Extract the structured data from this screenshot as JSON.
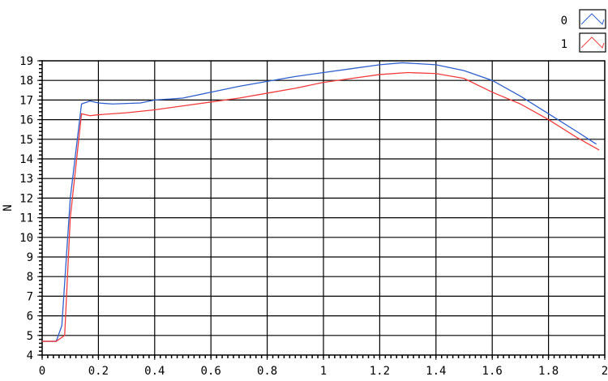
{
  "chart_data": {
    "type": "line",
    "title": "",
    "xlabel": "",
    "ylabel": "N",
    "xlim": [
      0,
      2
    ],
    "ylim": [
      4,
      19
    ],
    "grid": true,
    "legend_position": "top-right",
    "xticks": [
      "0",
      "0.2",
      "0.4",
      "0.6",
      "0.8",
      "1",
      "1.2",
      "1.4",
      "1.6",
      "1.8",
      "2"
    ],
    "yticks": [
      "4",
      "5",
      "6",
      "7",
      "8",
      "9",
      "10",
      "11",
      "12",
      "13",
      "14",
      "15",
      "16",
      "17",
      "18",
      "19"
    ],
    "series": [
      {
        "name": "0",
        "color": "#2f5fcc",
        "x": [
          0,
          0.05,
          0.07,
          0.1,
          0.14,
          0.17,
          0.2,
          0.25,
          0.35,
          0.4,
          0.5,
          0.6,
          0.7,
          0.8,
          0.9,
          1.0,
          1.1,
          1.2,
          1.28,
          1.4,
          1.5,
          1.6,
          1.7,
          1.8,
          1.9,
          1.97
        ],
        "y": [
          4.7,
          4.7,
          5.5,
          12,
          16.8,
          16.95,
          16.85,
          16.8,
          16.85,
          17.0,
          17.1,
          17.4,
          17.7,
          17.95,
          18.2,
          18.4,
          18.6,
          18.8,
          18.9,
          18.8,
          18.5,
          18.0,
          17.2,
          16.3,
          15.4,
          14.75
        ]
      },
      {
        "name": "1",
        "color": "#f03c3c",
        "x": [
          0,
          0.05,
          0.08,
          0.1,
          0.14,
          0.17,
          0.2,
          0.3,
          0.4,
          0.5,
          0.6,
          0.7,
          0.8,
          0.9,
          1.0,
          1.1,
          1.2,
          1.3,
          1.4,
          1.5,
          1.6,
          1.7,
          1.8,
          1.9,
          1.98
        ],
        "y": [
          4.7,
          4.7,
          5.0,
          11,
          16.3,
          16.2,
          16.25,
          16.35,
          16.5,
          16.7,
          16.9,
          17.1,
          17.35,
          17.6,
          17.9,
          18.1,
          18.3,
          18.4,
          18.35,
          18.1,
          17.4,
          16.8,
          16.0,
          15.1,
          14.45
        ]
      }
    ]
  }
}
